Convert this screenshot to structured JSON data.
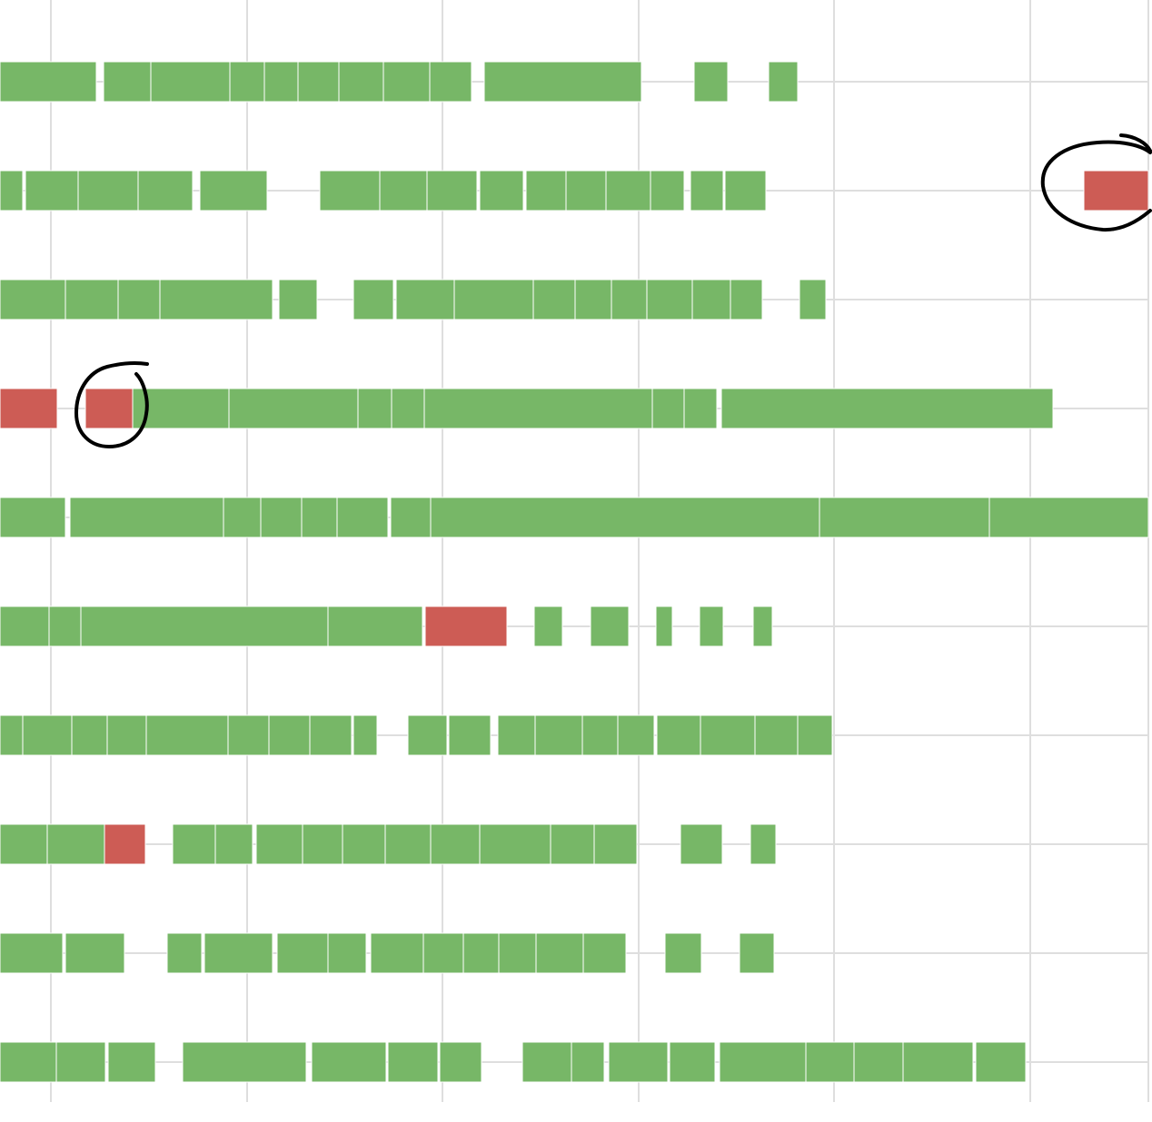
{
  "colors": {
    "ok": "#77b767",
    "failed": "#cd5c55",
    "grid": "#dedede",
    "annotation": "#000000"
  },
  "chart_data": {
    "type": "timeline",
    "x_gridlines": [
      56,
      272,
      487,
      703,
      918,
      1134,
      1264
    ],
    "x_range": [
      0,
      1268
    ],
    "legend": "none",
    "grid": true,
    "annotations": [
      {
        "kind": "hand-drawn-circle",
        "row": 1,
        "segment_start": 1193
      },
      {
        "kind": "hand-drawn-circle",
        "row": 3,
        "segment_start": 94
      }
    ],
    "rows": [
      {
        "segments": [
          [
            0,
            106,
            "ok"
          ],
          [
            114,
            166,
            "ok"
          ],
          [
            166,
            253,
            "ok"
          ],
          [
            253,
            291,
            "ok"
          ],
          [
            291,
            328,
            "ok"
          ],
          [
            328,
            373,
            "ok"
          ],
          [
            373,
            422,
            "ok"
          ],
          [
            422,
            473,
            "ok"
          ],
          [
            473,
            519,
            "ok"
          ],
          [
            533,
            706,
            "ok"
          ],
          [
            764,
            801,
            "ok"
          ],
          [
            846,
            878,
            "ok"
          ]
        ]
      },
      {
        "segments": [
          [
            0,
            25,
            "ok"
          ],
          [
            28,
            86,
            "ok"
          ],
          [
            86,
            152,
            "ok"
          ],
          [
            152,
            212,
            "ok"
          ],
          [
            220,
            294,
            "ok"
          ],
          [
            352,
            418,
            "ok"
          ],
          [
            418,
            470,
            "ok"
          ],
          [
            470,
            525,
            "ok"
          ],
          [
            528,
            576,
            "ok"
          ],
          [
            579,
            623,
            "ok"
          ],
          [
            623,
            667,
            "ok"
          ],
          [
            667,
            716,
            "ok"
          ],
          [
            716,
            753,
            "ok"
          ],
          [
            760,
            796,
            "ok"
          ],
          [
            798,
            843,
            "ok"
          ],
          [
            1193,
            1264,
            "failed"
          ]
        ]
      },
      {
        "segments": [
          [
            0,
            72,
            "ok"
          ],
          [
            72,
            130,
            "ok"
          ],
          [
            130,
            176,
            "ok"
          ],
          [
            176,
            300,
            "ok"
          ],
          [
            307,
            349,
            "ok"
          ],
          [
            389,
            433,
            "ok"
          ],
          [
            436,
            500,
            "ok"
          ],
          [
            500,
            587,
            "ok"
          ],
          [
            587,
            633,
            "ok"
          ],
          [
            633,
            673,
            "ok"
          ],
          [
            673,
            712,
            "ok"
          ],
          [
            712,
            762,
            "ok"
          ],
          [
            762,
            804,
            "ok"
          ],
          [
            804,
            839,
            "ok"
          ],
          [
            880,
            909,
            "ok"
          ]
        ]
      },
      {
        "segments": [
          [
            0,
            63,
            "failed"
          ],
          [
            94,
            146,
            "failed"
          ],
          [
            146,
            252,
            "ok"
          ],
          [
            252,
            394,
            "ok"
          ],
          [
            394,
            431,
            "ok"
          ],
          [
            431,
            467,
            "ok"
          ],
          [
            467,
            718,
            "ok"
          ],
          [
            718,
            753,
            "ok"
          ],
          [
            753,
            789,
            "ok"
          ],
          [
            794,
            1159,
            "ok"
          ]
        ]
      },
      {
        "segments": [
          [
            0,
            72,
            "ok"
          ],
          [
            77,
            246,
            "ok"
          ],
          [
            246,
            287,
            "ok"
          ],
          [
            287,
            332,
            "ok"
          ],
          [
            332,
            371,
            "ok"
          ],
          [
            371,
            427,
            "ok"
          ],
          [
            430,
            474,
            "ok"
          ],
          [
            474,
            902,
            "ok"
          ],
          [
            902,
            1089,
            "ok"
          ],
          [
            1089,
            1264,
            "ok"
          ]
        ]
      },
      {
        "segments": [
          [
            0,
            54,
            "ok"
          ],
          [
            54,
            89,
            "ok"
          ],
          [
            89,
            361,
            "ok"
          ],
          [
            361,
            465,
            "ok"
          ],
          [
            468,
            558,
            "failed"
          ],
          [
            588,
            619,
            "ok"
          ],
          [
            650,
            692,
            "ok"
          ],
          [
            722,
            740,
            "ok"
          ],
          [
            770,
            796,
            "ok"
          ],
          [
            829,
            850,
            "ok"
          ]
        ]
      },
      {
        "segments": [
          [
            0,
            25,
            "ok"
          ],
          [
            25,
            79,
            "ok"
          ],
          [
            79,
            118,
            "ok"
          ],
          [
            118,
            161,
            "ok"
          ],
          [
            161,
            251,
            "ok"
          ],
          [
            251,
            296,
            "ok"
          ],
          [
            296,
            341,
            "ok"
          ],
          [
            341,
            387,
            "ok"
          ],
          [
            389,
            415,
            "ok"
          ],
          [
            449,
            492,
            "ok"
          ],
          [
            494,
            540,
            "ok"
          ],
          [
            548,
            589,
            "ok"
          ],
          [
            589,
            641,
            "ok"
          ],
          [
            641,
            680,
            "ok"
          ],
          [
            680,
            720,
            "ok"
          ],
          [
            723,
            771,
            "ok"
          ],
          [
            771,
            831,
            "ok"
          ],
          [
            831,
            878,
            "ok"
          ],
          [
            878,
            916,
            "ok"
          ]
        ]
      },
      {
        "segments": [
          [
            0,
            52,
            "ok"
          ],
          [
            52,
            115,
            "ok"
          ],
          [
            115,
            160,
            "failed"
          ],
          [
            190,
            237,
            "ok"
          ],
          [
            237,
            278,
            "ok"
          ],
          [
            282,
            333,
            "ok"
          ],
          [
            333,
            377,
            "ok"
          ],
          [
            377,
            424,
            "ok"
          ],
          [
            424,
            474,
            "ok"
          ],
          [
            474,
            528,
            "ok"
          ],
          [
            528,
            606,
            "ok"
          ],
          [
            606,
            654,
            "ok"
          ],
          [
            654,
            701,
            "ok"
          ],
          [
            749,
            795,
            "ok"
          ],
          [
            826,
            854,
            "ok"
          ]
        ]
      },
      {
        "segments": [
          [
            0,
            69,
            "ok"
          ],
          [
            72,
            137,
            "ok"
          ],
          [
            184,
            222,
            "ok"
          ],
          [
            225,
            300,
            "ok"
          ],
          [
            305,
            361,
            "ok"
          ],
          [
            361,
            403,
            "ok"
          ],
          [
            408,
            466,
            "ok"
          ],
          [
            466,
            510,
            "ok"
          ],
          [
            510,
            549,
            "ok"
          ],
          [
            549,
            590,
            "ok"
          ],
          [
            590,
            642,
            "ok"
          ],
          [
            642,
            689,
            "ok"
          ],
          [
            732,
            772,
            "ok"
          ],
          [
            814,
            852,
            "ok"
          ]
        ]
      },
      {
        "segments": [
          [
            0,
            62,
            "ok"
          ],
          [
            62,
            116,
            "ok"
          ],
          [
            119,
            171,
            "ok"
          ],
          [
            201,
            337,
            "ok"
          ],
          [
            343,
            425,
            "ok"
          ],
          [
            427,
            482,
            "ok"
          ],
          [
            484,
            530,
            "ok"
          ],
          [
            575,
            629,
            "ok"
          ],
          [
            629,
            665,
            "ok"
          ],
          [
            670,
            735,
            "ok"
          ],
          [
            737,
            787,
            "ok"
          ],
          [
            792,
            887,
            "ok"
          ],
          [
            887,
            940,
            "ok"
          ],
          [
            940,
            994,
            "ok"
          ],
          [
            994,
            1071,
            "ok"
          ],
          [
            1074,
            1129,
            "ok"
          ]
        ]
      }
    ]
  }
}
